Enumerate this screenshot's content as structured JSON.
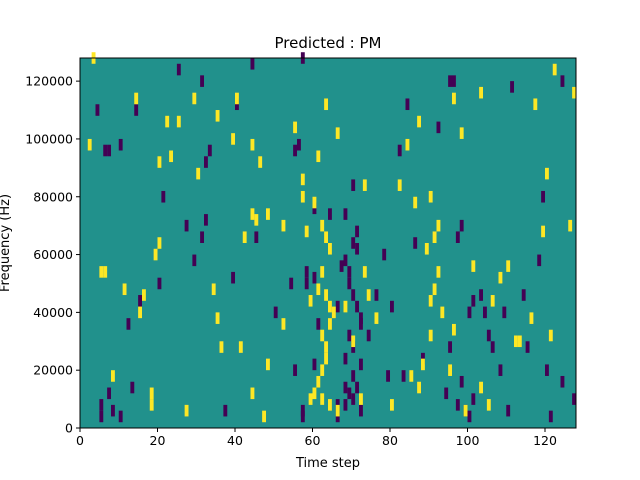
{
  "chart_data": {
    "type": "heatmap",
    "title": "Predicted : PM",
    "xlabel": "Time step",
    "ylabel": "Frequency (Hz)",
    "xlim": [
      0,
      128
    ],
    "ylim": [
      0,
      128000
    ],
    "x_ticks": [
      0,
      20,
      40,
      60,
      80,
      100,
      120
    ],
    "y_ticks": [
      0,
      20000,
      40000,
      60000,
      80000,
      100000,
      120000
    ],
    "x_tick_labels": [
      "0",
      "20",
      "40",
      "60",
      "80",
      "100",
      "120"
    ],
    "y_tick_labels": [
      "0",
      "20000",
      "40000",
      "60000",
      "80000",
      "100000",
      "120000"
    ],
    "grid": false,
    "colors": {
      "background": "#21918c",
      "high": "#fde725",
      "low": "#440154"
    },
    "frequency_bin_hz": 4000,
    "time_bin": 1,
    "high_cells": [
      [
        3,
        126000
      ],
      [
        14,
        112000
      ],
      [
        29,
        112000
      ],
      [
        35,
        106000
      ],
      [
        25,
        104000
      ],
      [
        40,
        112000
      ],
      [
        39,
        98000
      ],
      [
        44,
        96000
      ],
      [
        46,
        90000
      ],
      [
        63,
        110000
      ],
      [
        66,
        100000
      ],
      [
        23,
        92000
      ],
      [
        61,
        92000
      ],
      [
        57,
        84000
      ],
      [
        73,
        82000
      ],
      [
        82,
        82000
      ],
      [
        44,
        72000
      ],
      [
        45,
        70000
      ],
      [
        42,
        64000
      ],
      [
        48,
        72000
      ],
      [
        60,
        76000
      ],
      [
        62,
        68000
      ],
      [
        63,
        64000
      ],
      [
        64,
        60000
      ],
      [
        62,
        52000
      ],
      [
        61,
        46000
      ],
      [
        59,
        42000
      ],
      [
        63,
        44000
      ],
      [
        64,
        40000
      ],
      [
        64,
        34000
      ],
      [
        62,
        30000
      ],
      [
        63,
        22000
      ],
      [
        62,
        18000
      ],
      [
        61,
        14000
      ],
      [
        60,
        10000
      ],
      [
        59,
        8000
      ],
      [
        62,
        8000
      ],
      [
        64,
        6000
      ],
      [
        66,
        4000
      ],
      [
        63,
        26000
      ],
      [
        65,
        38000
      ],
      [
        68,
        40000
      ],
      [
        70,
        28000
      ],
      [
        72,
        8000
      ],
      [
        74,
        44000
      ],
      [
        76,
        36000
      ],
      [
        85,
        16000
      ],
      [
        87,
        12000
      ],
      [
        88,
        20000
      ],
      [
        90,
        30000
      ],
      [
        90,
        42000
      ],
      [
        91,
        46000
      ],
      [
        92,
        52000
      ],
      [
        89,
        60000
      ],
      [
        91,
        64000
      ],
      [
        92,
        68000
      ],
      [
        86,
        76000
      ],
      [
        90,
        78000
      ],
      [
        98,
        100000
      ],
      [
        96,
        112000
      ],
      [
        103,
        114000
      ],
      [
        106,
        42000
      ],
      [
        108,
        50000
      ],
      [
        112,
        28000
      ],
      [
        113,
        28000
      ],
      [
        117,
        110000
      ],
      [
        119,
        66000
      ],
      [
        121,
        30000
      ],
      [
        126,
        68000
      ],
      [
        2,
        96000
      ],
      [
        5,
        52000
      ],
      [
        6,
        52000
      ],
      [
        8,
        16000
      ],
      [
        11,
        46000
      ],
      [
        15,
        38000
      ],
      [
        16,
        44000
      ],
      [
        18,
        10000
      ],
      [
        18,
        6000
      ],
      [
        19,
        58000
      ],
      [
        20,
        62000
      ],
      [
        20,
        90000
      ],
      [
        22,
        104000
      ],
      [
        27,
        4000
      ],
      [
        34,
        46000
      ],
      [
        35,
        36000
      ],
      [
        36,
        26000
      ],
      [
        41,
        26000
      ],
      [
        44,
        10000
      ],
      [
        47,
        2000
      ],
      [
        48,
        20000
      ],
      [
        52,
        34000
      ],
      [
        55,
        102000
      ],
      [
        57,
        78000
      ],
      [
        58,
        66000
      ],
      [
        73,
        52000
      ],
      [
        80,
        6000
      ],
      [
        84,
        96000
      ],
      [
        87,
        104000
      ],
      [
        93,
        38000
      ],
      [
        95,
        18000
      ],
      [
        96,
        32000
      ],
      [
        99,
        4000
      ],
      [
        101,
        54000
      ],
      [
        103,
        12000
      ],
      [
        105,
        6000
      ],
      [
        110,
        54000
      ],
      [
        116,
        36000
      ],
      [
        120,
        86000
      ],
      [
        122,
        122000
      ],
      [
        127,
        114000
      ],
      [
        52,
        68000
      ],
      [
        30,
        86000
      ]
    ],
    "low_cells": [
      [
        57,
        126000
      ],
      [
        31,
        118000
      ],
      [
        25,
        122000
      ],
      [
        44,
        124000
      ],
      [
        6,
        94000
      ],
      [
        7,
        94000
      ],
      [
        4,
        108000
      ],
      [
        14,
        108000
      ],
      [
        40,
        110000
      ],
      [
        10,
        96000
      ],
      [
        33,
        94000
      ],
      [
        32,
        90000
      ],
      [
        55,
        94000
      ],
      [
        56,
        96000
      ],
      [
        84,
        110000
      ],
      [
        92,
        102000
      ],
      [
        95,
        118000
      ],
      [
        96,
        118000
      ],
      [
        111,
        116000
      ],
      [
        124,
        118000
      ],
      [
        70,
        82000
      ],
      [
        60,
        74000
      ],
      [
        68,
        72000
      ],
      [
        70,
        62000
      ],
      [
        71,
        60000
      ],
      [
        68,
        56000
      ],
      [
        69,
        52000
      ],
      [
        69,
        48000
      ],
      [
        70,
        44000
      ],
      [
        71,
        40000
      ],
      [
        72,
        36000
      ],
      [
        72,
        34000
      ],
      [
        69,
        30000
      ],
      [
        70,
        26000
      ],
      [
        68,
        22000
      ],
      [
        70,
        16000
      ],
      [
        68,
        12000
      ],
      [
        69,
        10000
      ],
      [
        70,
        8000
      ],
      [
        71,
        12000
      ],
      [
        68,
        6000
      ],
      [
        72,
        4000
      ],
      [
        66,
        6000
      ],
      [
        66,
        2000
      ],
      [
        57,
        4000
      ],
      [
        57,
        2000
      ],
      [
        58,
        52000
      ],
      [
        58,
        48000
      ],
      [
        60,
        50000
      ],
      [
        67,
        54000
      ],
      [
        66,
        40000
      ],
      [
        61,
        34000
      ],
      [
        72,
        20000
      ],
      [
        74,
        30000
      ],
      [
        76,
        44000
      ],
      [
        79,
        16000
      ],
      [
        78,
        58000
      ],
      [
        83,
        16000
      ],
      [
        94,
        10000
      ],
      [
        97,
        6000
      ],
      [
        98,
        14000
      ],
      [
        99,
        4000
      ],
      [
        100,
        2000
      ],
      [
        101,
        8000
      ],
      [
        100,
        38000
      ],
      [
        101,
        42000
      ],
      [
        104,
        38000
      ],
      [
        105,
        30000
      ],
      [
        108,
        18000
      ],
      [
        109,
        38000
      ],
      [
        115,
        26000
      ],
      [
        120,
        18000
      ],
      [
        124,
        14000
      ],
      [
        127,
        8000
      ],
      [
        5,
        6000
      ],
      [
        5,
        2000
      ],
      [
        7,
        10000
      ],
      [
        8,
        4000
      ],
      [
        10,
        2000
      ],
      [
        12,
        34000
      ],
      [
        13,
        12000
      ],
      [
        15,
        42000
      ],
      [
        20,
        48000
      ],
      [
        21,
        78000
      ],
      [
        27,
        68000
      ],
      [
        29,
        56000
      ],
      [
        31,
        64000
      ],
      [
        32,
        70000
      ],
      [
        37,
        4000
      ],
      [
        39,
        50000
      ],
      [
        45,
        64000
      ],
      [
        50,
        38000
      ],
      [
        54,
        48000
      ],
      [
        55,
        18000
      ],
      [
        60,
        20000
      ],
      [
        64,
        72000
      ],
      [
        71,
        66000
      ],
      [
        80,
        40000
      ],
      [
        82,
        94000
      ],
      [
        86,
        62000
      ],
      [
        88,
        22000
      ],
      [
        95,
        26000
      ],
      [
        97,
        64000
      ],
      [
        98,
        68000
      ],
      [
        103,
        44000
      ],
      [
        106,
        26000
      ],
      [
        110,
        4000
      ],
      [
        114,
        44000
      ],
      [
        118,
        56000
      ],
      [
        119,
        78000
      ],
      [
        121,
        2000
      ]
    ]
  }
}
